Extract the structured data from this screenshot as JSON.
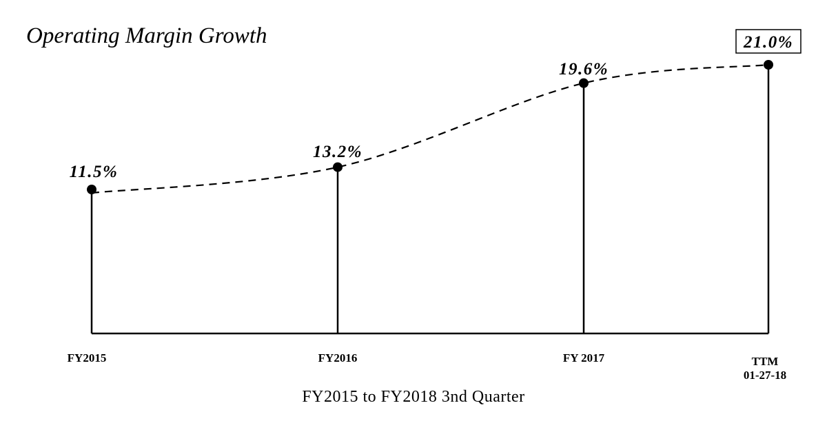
{
  "chart_data": {
    "type": "line",
    "title": "Operating Margin Growth",
    "subtitle": "FY2015 to FY2018 3nd Quarter",
    "categories": [
      "FY2015",
      "FY2016",
      "FY 2017",
      "TTM 01-27-18"
    ],
    "category_lines": [
      [
        "FY2015"
      ],
      [
        "FY2016"
      ],
      [
        "FY 2017"
      ],
      [
        "TTM",
        "01-27-18"
      ]
    ],
    "series": [
      {
        "name": "Operating Margin",
        "values": [
          11.5,
          13.2,
          19.6,
          21.0
        ]
      }
    ],
    "value_labels": [
      "11.5%",
      "13.2%",
      "19.6%",
      "21.0%"
    ],
    "highlighted_index": 3,
    "line_style": "dashed",
    "drop_lines": true,
    "unit": "%"
  }
}
